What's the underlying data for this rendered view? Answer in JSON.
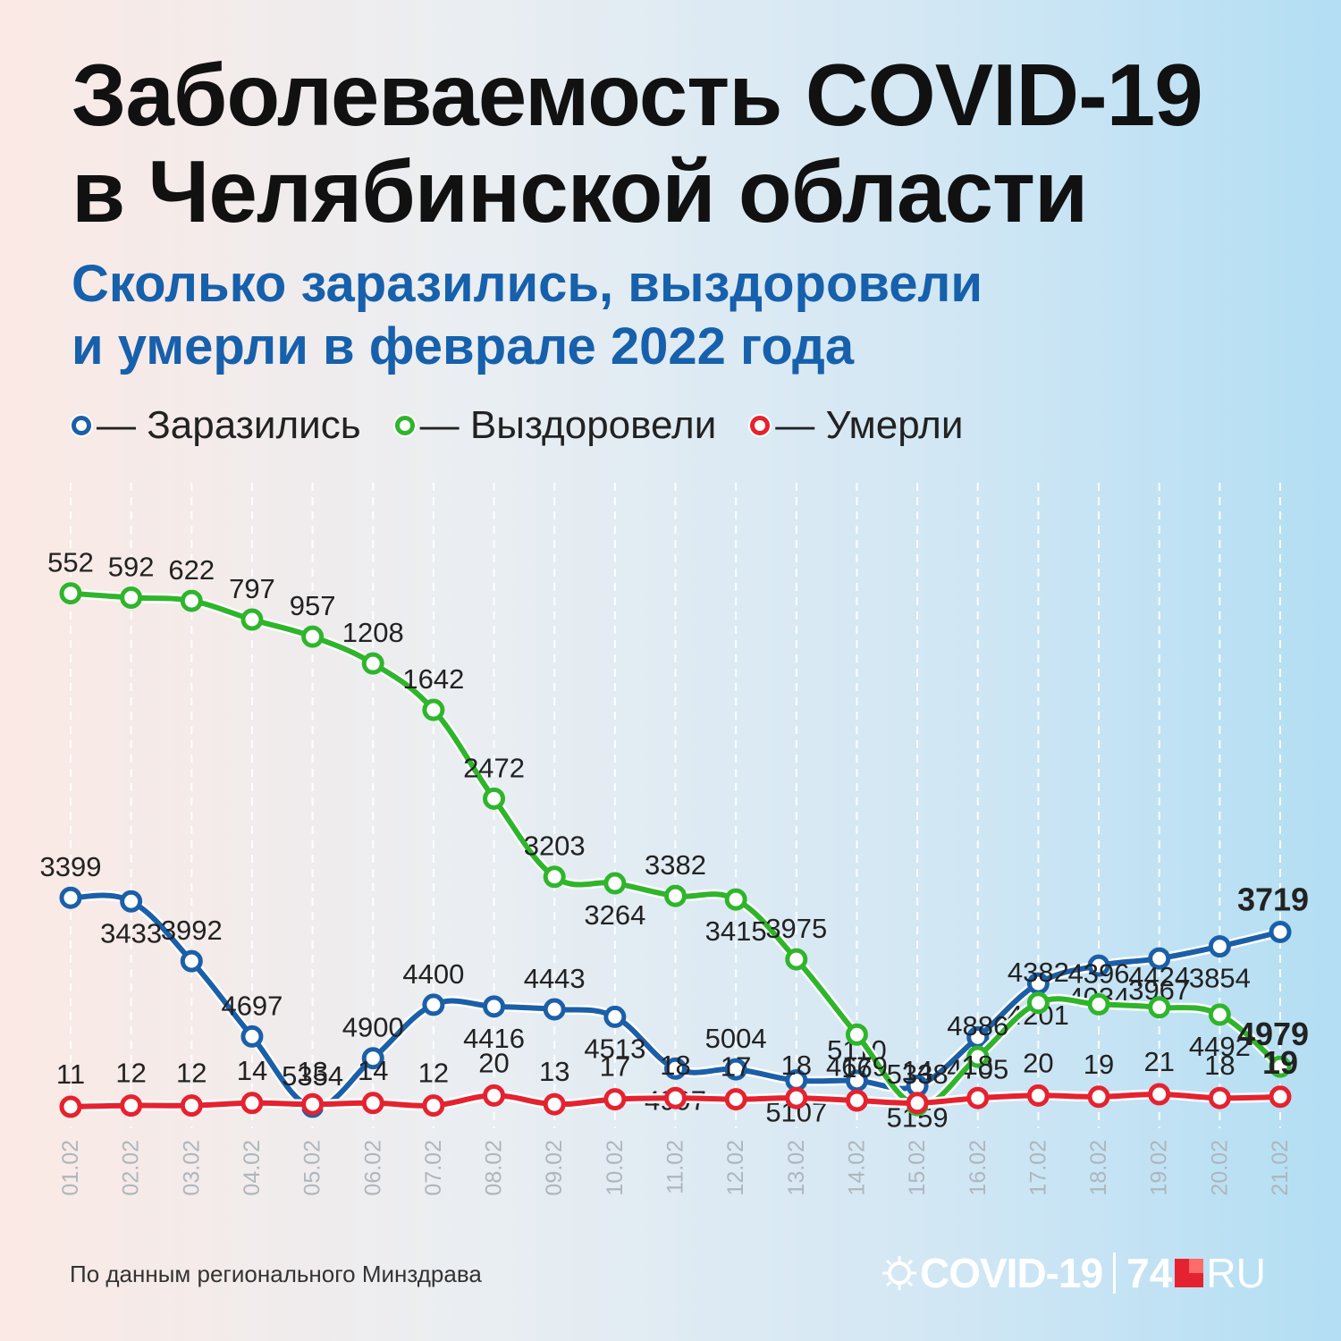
{
  "title": {
    "line1": "Заболеваемость COVID-19",
    "line2": "в Челябинской области"
  },
  "subtitle": {
    "line1": "Сколько заразились, выздоровели",
    "line2": "и умерли в феврале 2022 года"
  },
  "legend": [
    {
      "label": "— Заразились",
      "color": "#1b5fa8"
    },
    {
      "label": "— Выздоровели",
      "color": "#2fb52c"
    },
    {
      "label": "— Умерли",
      "color": "#e5222f"
    }
  ],
  "source": "По данным регионального Минздрава",
  "logo": {
    "left": "COVID-19",
    "number": "74",
    "suffix": "RU"
  },
  "chart_data": {
    "type": "line",
    "x": [
      "01.02",
      "02.02",
      "03.02",
      "04.02",
      "05.02",
      "06.02",
      "07.02",
      "08.02",
      "09.02",
      "10.02",
      "11.02",
      "12.02",
      "13.02",
      "14.02",
      "15.02",
      "16.02",
      "17.02",
      "18.02",
      "19.02",
      "20.02",
      "21.02"
    ],
    "series": [
      {
        "name": "Заразились",
        "color": "#1b5fa8",
        "values": [
          3399,
          3433,
          3992,
          4697,
          5354,
          4900,
          4400,
          4416,
          4443,
          4513,
          4997,
          5004,
          5107,
          5110,
          5159,
          4705,
          4201,
          4034,
          3967,
          3854,
          3719
        ]
      },
      {
        "name": "Выздоровели",
        "color": "#2fb52c",
        "values": [
          552,
          592,
          622,
          797,
          957,
          1208,
          1642,
          2472,
          3203,
          3264,
          3382,
          3415,
          3975,
          4679,
          5338,
          4886,
          4382,
          4396,
          4424,
          4492,
          4979
        ]
      },
      {
        "name": "Умерли",
        "color": "#e5222f",
        "values": [
          11,
          12,
          12,
          14,
          13,
          14,
          12,
          20,
          13,
          17,
          18,
          17,
          18,
          16,
          14,
          18,
          20,
          19,
          21,
          18,
          19
        ]
      }
    ],
    "grid": true
  }
}
